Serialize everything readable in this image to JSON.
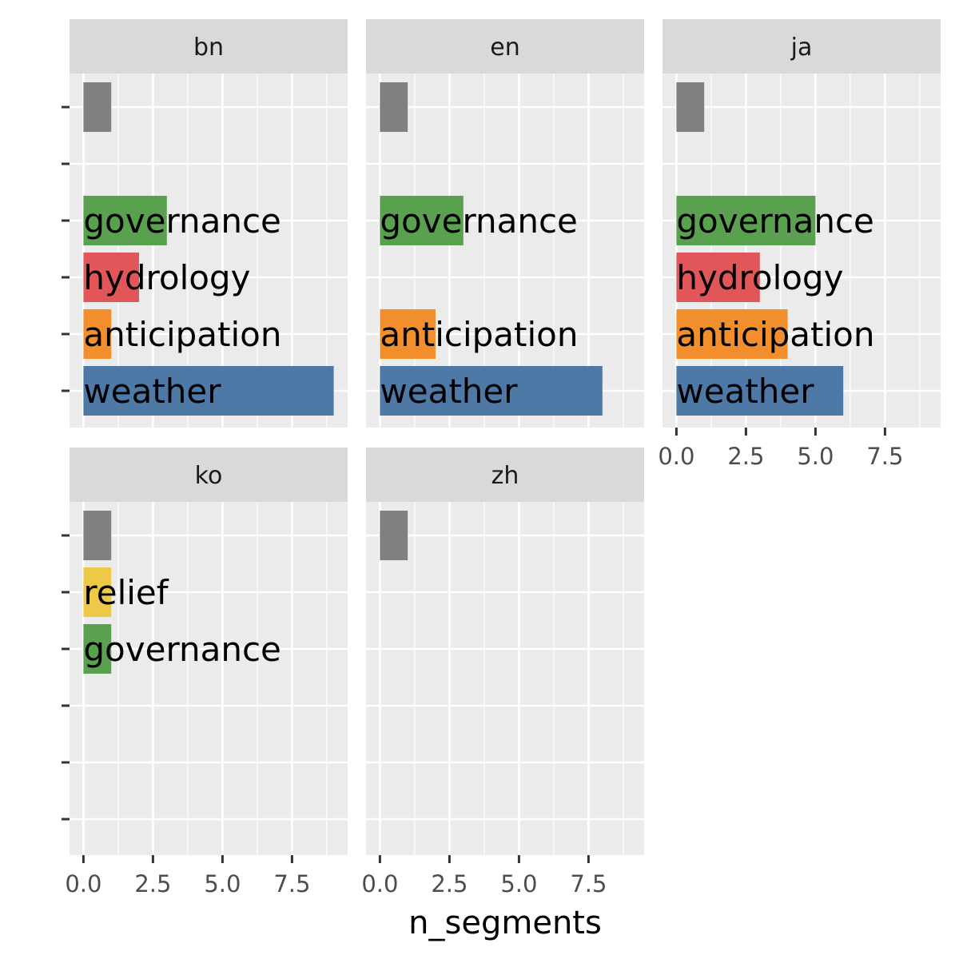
{
  "chart_data": {
    "type": "bar",
    "orientation": "horizontal",
    "xlabel": "n_segments",
    "ylabel": "",
    "xlim": [
      -0.5,
      9.5
    ],
    "x_ticks": [
      0,
      2.5,
      5,
      7.5
    ],
    "x_tick_labels": [
      "0.0",
      "2.5",
      "5.0",
      "7.5"
    ],
    "grid": true,
    "legend": "none",
    "categories": [
      "",
      "",
      "governance",
      "hydrology",
      "anticipation",
      "weather"
    ],
    "colors": {
      "other": "#808080",
      "relief": "#EDC948",
      "governance": "#59A14F",
      "hydrology": "#E15759",
      "anticipation": "#F28E2B",
      "weather": "#4E79A7"
    },
    "panels": [
      {
        "facet": "bn",
        "bars": [
          {
            "label": "",
            "value": 1,
            "color_key": "other"
          },
          {
            "label": "governance",
            "value": 3,
            "color_key": "governance"
          },
          {
            "label": "hydrology",
            "value": 2,
            "color_key": "hydrology"
          },
          {
            "label": "anticipation",
            "value": 1,
            "color_key": "anticipation"
          },
          {
            "label": "weather",
            "value": 9,
            "color_key": "weather"
          }
        ]
      },
      {
        "facet": "en",
        "bars": [
          {
            "label": "",
            "value": 1,
            "color_key": "other"
          },
          {
            "label": "governance",
            "value": 3,
            "color_key": "governance"
          },
          {
            "label": "anticipation",
            "value": 2,
            "color_key": "anticipation"
          },
          {
            "label": "weather",
            "value": 8,
            "color_key": "weather"
          }
        ]
      },
      {
        "facet": "ja",
        "bars": [
          {
            "label": "",
            "value": 1,
            "color_key": "other"
          },
          {
            "label": "governance",
            "value": 5,
            "color_key": "governance"
          },
          {
            "label": "hydrology",
            "value": 3,
            "color_key": "hydrology"
          },
          {
            "label": "anticipation",
            "value": 4,
            "color_key": "anticipation"
          },
          {
            "label": "weather",
            "value": 6,
            "color_key": "weather"
          }
        ]
      },
      {
        "facet": "ko",
        "bars": [
          {
            "label": "",
            "value": 1,
            "color_key": "other"
          },
          {
            "label": "relief",
            "value": 1,
            "color_key": "relief"
          },
          {
            "label": "governance",
            "value": 1,
            "color_key": "governance"
          }
        ]
      },
      {
        "facet": "zh",
        "bars": [
          {
            "label": "",
            "value": 1,
            "color_key": "other"
          }
        ]
      }
    ]
  }
}
